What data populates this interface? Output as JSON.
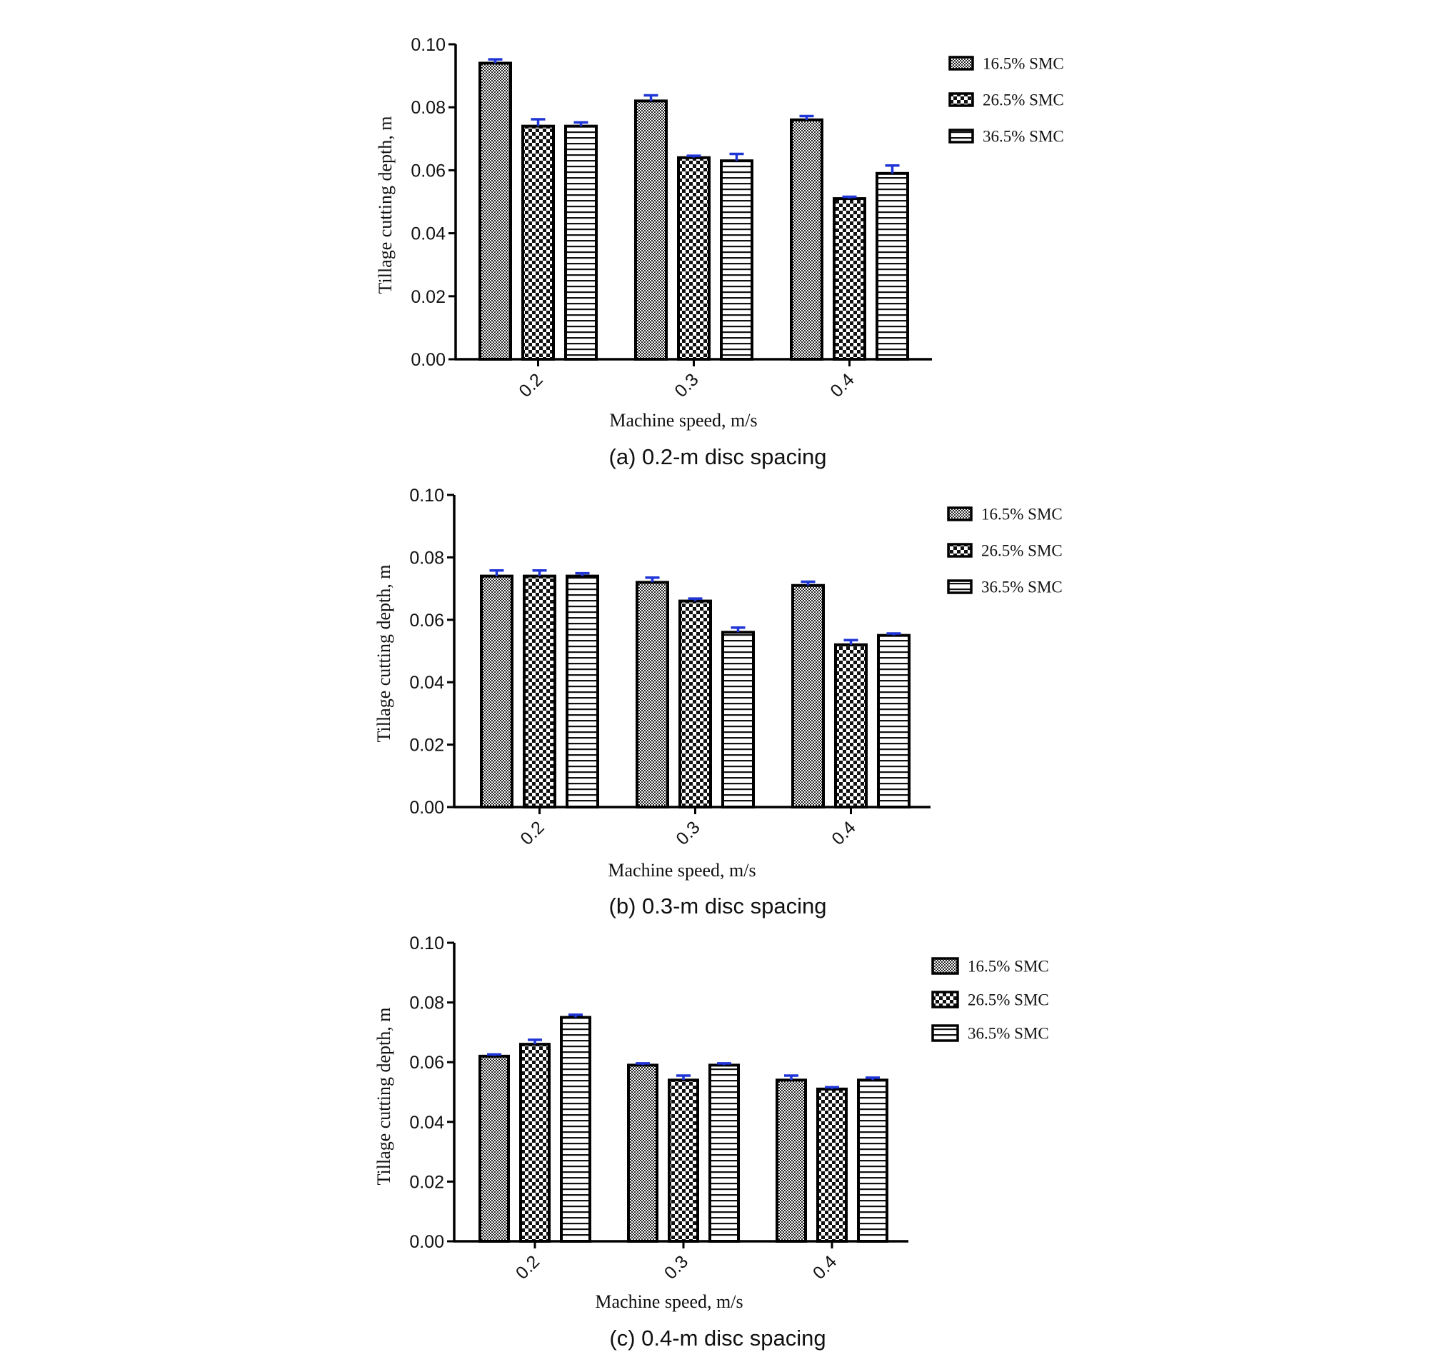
{
  "chart_data": [
    {
      "type": "bar",
      "caption": "(a) 0.2-m disc spacing",
      "xlabel": "Machine speed, m/s",
      "ylabel": "Tillage cutting depth, m",
      "categories": [
        "0.2",
        "0.3",
        "0.4"
      ],
      "ylim": [
        0,
        0.1
      ],
      "yticks": [
        "0.00",
        "0.02",
        "0.04",
        "0.06",
        "0.08",
        "0.10"
      ],
      "legend_position": "top-right",
      "error_bar_color": "#1f35d6",
      "series": [
        {
          "name": "16.5% SMC",
          "pattern": "fine-check",
          "values": [
            0.094,
            0.082,
            0.076
          ],
          "errors": [
            0.0012,
            0.0018,
            0.0012
          ]
        },
        {
          "name": "26.5% SMC",
          "pattern": "coarse-check",
          "values": [
            0.074,
            0.064,
            0.051
          ],
          "errors": [
            0.0022,
            0.0006,
            0.0006
          ]
        },
        {
          "name": "36.5% SMC",
          "pattern": "horizontal-lines",
          "values": [
            0.074,
            0.063,
            0.059
          ],
          "errors": [
            0.0012,
            0.0022,
            0.0025
          ]
        }
      ]
    },
    {
      "type": "bar",
      "caption": "(b) 0.3-m disc spacing",
      "xlabel": "Machine speed, m/s",
      "ylabel": "Tillage cutting depth, m",
      "categories": [
        "0.2",
        "0.3",
        "0.4"
      ],
      "ylim": [
        0,
        0.1
      ],
      "yticks": [
        "0.00",
        "0.02",
        "0.04",
        "0.06",
        "0.08",
        "0.10"
      ],
      "legend_position": "top-right",
      "error_bar_color": "#1f35d6",
      "series": [
        {
          "name": "16.5% SMC",
          "pattern": "fine-check",
          "values": [
            0.074,
            0.072,
            0.071
          ],
          "errors": [
            0.0018,
            0.0015,
            0.0012
          ]
        },
        {
          "name": "26.5% SMC",
          "pattern": "coarse-check",
          "values": [
            0.074,
            0.066,
            0.052
          ],
          "errors": [
            0.0018,
            0.0008,
            0.0015
          ]
        },
        {
          "name": "36.5% SMC",
          "pattern": "horizontal-lines",
          "values": [
            0.074,
            0.056,
            0.055
          ],
          "errors": [
            0.0009,
            0.0015,
            0.0006
          ]
        }
      ]
    },
    {
      "type": "bar",
      "caption": "(c) 0.4-m disc spacing",
      "xlabel": "Machine speed, m/s",
      "ylabel": "Tillage cutting depth, m",
      "categories": [
        "0.2",
        "0.3",
        "0.4"
      ],
      "ylim": [
        0,
        0.1
      ],
      "yticks": [
        "0.00",
        "0.02",
        "0.04",
        "0.06",
        "0.08",
        "0.10"
      ],
      "legend_position": "top-right",
      "error_bar_color": "#1f35d6",
      "series": [
        {
          "name": "16.5% SMC",
          "pattern": "fine-check",
          "values": [
            0.062,
            0.059,
            0.054
          ],
          "errors": [
            0.0006,
            0.0006,
            0.0015
          ]
        },
        {
          "name": "26.5% SMC",
          "pattern": "coarse-check",
          "values": [
            0.066,
            0.054,
            0.051
          ],
          "errors": [
            0.0015,
            0.0015,
            0.0006
          ]
        },
        {
          "name": "36.5% SMC",
          "pattern": "horizontal-lines",
          "values": [
            0.075,
            0.059,
            0.054
          ],
          "errors": [
            0.0009,
            0.0006,
            0.0008
          ]
        }
      ]
    }
  ]
}
